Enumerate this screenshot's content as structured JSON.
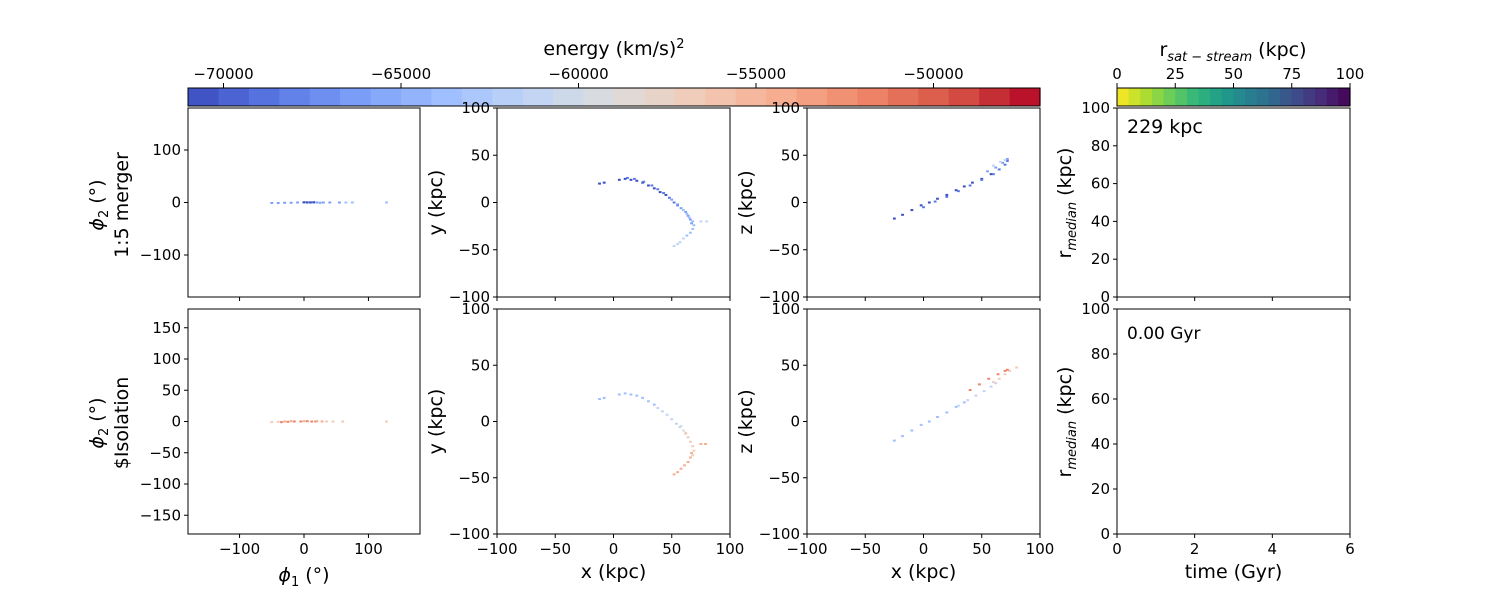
{
  "figure": {
    "colorbar_energy": {
      "label": "energy (km/s)",
      "label_sup": "2",
      "ticks": [
        -70000,
        -65000,
        -60000,
        -55000,
        -50000
      ],
      "tick_labels": [
        "−70000",
        "−65000",
        "−60000",
        "−55000",
        "−50000"
      ],
      "range": [
        -71000,
        -47000
      ],
      "n_segments": 28,
      "colormap": "coolwarm",
      "stops": [
        "#3b4cc0",
        "#5977e3",
        "#7b9ff9",
        "#9ebeff",
        "#c0d4f5",
        "#dddcdc",
        "#f2cbb7",
        "#f7ac8e",
        "#ee8468",
        "#d65244",
        "#b40426"
      ]
    },
    "colorbar_rsat": {
      "label_main": "r",
      "label_sub": "sat − stream",
      "label_tail": " (kpc)",
      "ticks": [
        0,
        25,
        50,
        75,
        100
      ],
      "tick_labels": [
        "0",
        "25",
        "50",
        "75",
        "100"
      ],
      "range": [
        0,
        100
      ],
      "n_segments": 20,
      "colormap": "viridis_r",
      "stops": [
        "#fde725",
        "#b5de2b",
        "#6ece58",
        "#35b779",
        "#1f9e89",
        "#26828e",
        "#31688e",
        "#3e4989",
        "#482878",
        "#440154"
      ]
    },
    "row_labels": [
      "1:5 merger",
      "$Isolation"
    ],
    "annotations": {
      "distance": "229 kpc",
      "time": "0.00 Gyr"
    }
  },
  "chart_data": [
    {
      "type": "scatter",
      "panel": "top-phi",
      "row": "1:5 merger",
      "xlim": [
        -180,
        180
      ],
      "ylim": [
        -180,
        180
      ],
      "ylabel": "ϕ₂ (°)",
      "xlabel": "",
      "yticks": [
        -100,
        0,
        100
      ],
      "xticks": [
        -100,
        0,
        100
      ],
      "series": [
        {
          "color": "#7b9ff9",
          "points": [
            [
              -50,
              -1
            ],
            [
              -40,
              -1
            ],
            [
              -30,
              -0.5
            ],
            [
              -20,
              -0.5
            ],
            [
              -10,
              0
            ],
            [
              0,
              0
            ],
            [
              5,
              0.5
            ],
            [
              10,
              0.5
            ],
            [
              15,
              0
            ],
            [
              20,
              0
            ],
            [
              25,
              -0.5
            ],
            [
              30,
              0
            ],
            [
              40,
              0
            ],
            [
              55,
              0
            ]
          ]
        },
        {
          "color": "#3b4cc0",
          "points": [
            [
              0,
              0.5
            ],
            [
              5,
              0
            ],
            [
              10,
              0
            ],
            [
              15,
              0.5
            ]
          ]
        },
        {
          "color": "#9ebeff",
          "points": [
            [
              65,
              0
            ],
            [
              75,
              0
            ],
            [
              128,
              0
            ]
          ]
        }
      ]
    },
    {
      "type": "scatter",
      "panel": "top-xy",
      "row": "1:5 merger",
      "xlim": [
        -100,
        100
      ],
      "ylim": [
        -100,
        100
      ],
      "xlabel": "",
      "ylabel": "y (kpc)",
      "xticks": [
        -100,
        -50,
        0,
        50,
        100
      ],
      "yticks": [
        -100,
        -50,
        0,
        50,
        100
      ],
      "series": [
        {
          "color": "#3b4cc0",
          "points": [
            [
              -12,
              20
            ],
            [
              -8,
              21
            ],
            [
              5,
              24
            ],
            [
              10,
              25
            ],
            [
              15,
              24
            ],
            [
              20,
              23
            ],
            [
              25,
              21
            ],
            [
              30,
              18
            ],
            [
              35,
              15
            ],
            [
              40,
              11
            ],
            [
              45,
              8
            ]
          ]
        },
        {
          "color": "#5977e3",
          "points": [
            [
              12,
              26
            ],
            [
              18,
              25
            ],
            [
              26,
              22
            ],
            [
              33,
              18
            ],
            [
              38,
              14
            ],
            [
              43,
              10
            ],
            [
              48,
              5
            ],
            [
              52,
              0
            ],
            [
              55,
              -3
            ]
          ]
        },
        {
          "color": "#7b9ff9",
          "points": [
            [
              50,
              3
            ],
            [
              55,
              -2
            ],
            [
              58,
              -6
            ],
            [
              62,
              -10
            ],
            [
              64,
              -14
            ],
            [
              66,
              -18
            ],
            [
              67,
              -22
            ]
          ]
        },
        {
          "color": "#9ebeff",
          "points": [
            [
              60,
              -8
            ],
            [
              63,
              -12
            ],
            [
              65,
              -16
            ],
            [
              68,
              -20
            ],
            [
              69,
              -24
            ],
            [
              68,
              -28
            ],
            [
              66,
              -32
            ],
            [
              63,
              -35
            ]
          ]
        },
        {
          "color": "#c0d4f5",
          "points": [
            [
              60,
              -38
            ],
            [
              57,
              -42
            ],
            [
              55,
              -44
            ],
            [
              52,
              -46
            ],
            [
              75,
              -20
            ],
            [
              80,
              -20
            ]
          ]
        }
      ]
    },
    {
      "type": "scatter",
      "panel": "top-xz",
      "row": "1:5 merger",
      "xlim": [
        -100,
        100
      ],
      "ylim": [
        -100,
        100
      ],
      "xlabel": "",
      "ylabel": "z (kpc)",
      "xticks": [
        -100,
        -50,
        0,
        50,
        100
      ],
      "yticks": [
        -100,
        -50,
        0,
        50,
        100
      ],
      "series": [
        {
          "color": "#3b4cc0",
          "points": [
            [
              -25,
              -17
            ],
            [
              -18,
              -13
            ],
            [
              -10,
              -8
            ],
            [
              -2,
              -3
            ],
            [
              5,
              0
            ],
            [
              12,
              4
            ],
            [
              20,
              8
            ],
            [
              28,
              13
            ],
            [
              35,
              17
            ],
            [
              42,
              21
            ],
            [
              50,
              25
            ],
            [
              58,
              30
            ]
          ]
        },
        {
          "color": "#5977e3",
          "points": [
            [
              0,
              -5
            ],
            [
              10,
              1
            ],
            [
              20,
              6
            ],
            [
              30,
              12
            ],
            [
              40,
              18
            ],
            [
              50,
              24
            ],
            [
              60,
              30
            ],
            [
              65,
              35
            ],
            [
              70,
              40
            ],
            [
              72,
              44
            ]
          ]
        },
        {
          "color": "#7b9ff9",
          "points": [
            [
              55,
              33
            ],
            [
              62,
              37
            ],
            [
              68,
              42
            ],
            [
              72,
              46
            ]
          ]
        },
        {
          "color": "#c0d4f5",
          "points": [
            [
              60,
              39
            ],
            [
              66,
              43
            ],
            [
              70,
              45
            ]
          ]
        }
      ]
    },
    {
      "type": "line",
      "panel": "top-rmedian",
      "row": "1:5 merger",
      "xlim": [
        0,
        6
      ],
      "ylim": [
        0,
        100
      ],
      "xlabel": "",
      "ylabel": "r_median (kpc)",
      "xticks": [
        0,
        2,
        4,
        6
      ],
      "yticks": [
        0,
        20,
        40,
        60,
        80,
        100
      ],
      "series": []
    },
    {
      "type": "scatter",
      "panel": "bottom-phi",
      "row": "$Isolation",
      "xlim": [
        -180,
        180
      ],
      "ylim": [
        -180,
        180
      ],
      "xlabel": "ϕ₁ (°)",
      "ylabel": "ϕ₂ (°)",
      "xticks": [
        -100,
        0,
        100
      ],
      "yticks": [
        -150,
        -100,
        -50,
        0,
        50,
        100,
        150
      ],
      "series": [
        {
          "color": "#f2cbb7",
          "points": [
            [
              -50,
              -1
            ],
            [
              -40,
              -0.5
            ],
            [
              35,
              0
            ],
            [
              45,
              0
            ],
            [
              60,
              0
            ],
            [
              128,
              0
            ]
          ]
        },
        {
          "color": "#ee8468",
          "points": [
            [
              -35,
              -1
            ],
            [
              -25,
              -0.5
            ],
            [
              -15,
              0
            ],
            [
              -5,
              0
            ],
            [
              5,
              0.5
            ],
            [
              12,
              0
            ],
            [
              18,
              0
            ]
          ]
        },
        {
          "color": "#f7ac8e",
          "points": [
            [
              -30,
              0
            ],
            [
              -20,
              0.5
            ],
            [
              0,
              0.5
            ],
            [
              20,
              0.5
            ],
            [
              28,
              0
            ]
          ]
        }
      ]
    },
    {
      "type": "scatter",
      "panel": "bottom-xy",
      "row": "$Isolation",
      "xlim": [
        -100,
        100
      ],
      "ylim": [
        -100,
        100
      ],
      "xlabel": "x (kpc)",
      "ylabel": "y (kpc)",
      "xticks": [
        -100,
        -50,
        0,
        50,
        100
      ],
      "yticks": [
        -100,
        -50,
        0,
        50,
        100
      ],
      "series": [
        {
          "color": "#9ebeff",
          "points": [
            [
              -12,
              20
            ],
            [
              -8,
              21
            ],
            [
              5,
              24
            ],
            [
              10,
              25
            ],
            [
              15,
              24
            ],
            [
              20,
              23
            ],
            [
              25,
              21
            ],
            [
              30,
              18
            ],
            [
              35,
              15
            ]
          ]
        },
        {
          "color": "#c0d4f5",
          "points": [
            [
              38,
              12
            ],
            [
              42,
              9
            ],
            [
              46,
              6
            ],
            [
              50,
              2
            ],
            [
              54,
              -2
            ],
            [
              57,
              -5
            ]
          ]
        },
        {
          "color": "#dddcdc",
          "points": [
            [
              58,
              -4
            ],
            [
              60,
              -8
            ],
            [
              62,
              -11
            ]
          ]
        },
        {
          "color": "#f2cbb7",
          "points": [
            [
              62,
              -10
            ],
            [
              64,
              -14
            ],
            [
              66,
              -18
            ],
            [
              68,
              -22
            ],
            [
              69,
              -26
            ],
            [
              68,
              -30
            ]
          ]
        },
        {
          "color": "#f7ac8e",
          "points": [
            [
              67,
              -28
            ],
            [
              66,
              -32
            ],
            [
              64,
              -36
            ],
            [
              61,
              -39
            ],
            [
              58,
              -42
            ],
            [
              55,
              -45
            ],
            [
              52,
              -47
            ],
            [
              75,
              -20
            ],
            [
              79,
              -20
            ]
          ]
        }
      ]
    },
    {
      "type": "scatter",
      "panel": "bottom-xz",
      "row": "$Isolation",
      "xlim": [
        -100,
        100
      ],
      "ylim": [
        -100,
        100
      ],
      "xlabel": "x (kpc)",
      "ylabel": "z (kpc)",
      "xticks": [
        -100,
        -50,
        0,
        50,
        100
      ],
      "yticks": [
        -100,
        -50,
        0,
        50,
        100
      ],
      "series": [
        {
          "color": "#9ebeff",
          "points": [
            [
              -25,
              -17
            ],
            [
              -18,
              -13
            ],
            [
              -10,
              -8
            ],
            [
              -2,
              -3
            ],
            [
              5,
              0
            ],
            [
              12,
              4
            ],
            [
              20,
              8
            ],
            [
              28,
              13
            ],
            [
              35,
              17
            ]
          ]
        },
        {
          "color": "#c0d4f5",
          "points": [
            [
              30,
              14
            ],
            [
              38,
              19
            ],
            [
              45,
              23
            ],
            [
              52,
              27
            ],
            [
              58,
              31
            ],
            [
              62,
              34
            ]
          ]
        },
        {
          "color": "#f2cbb7",
          "points": [
            [
              60,
              35
            ],
            [
              65,
              38
            ],
            [
              70,
              42
            ],
            [
              74,
              45
            ],
            [
              80,
              48
            ]
          ]
        },
        {
          "color": "#ee8468",
          "points": [
            [
              40,
              28
            ],
            [
              48,
              33
            ],
            [
              56,
              38
            ],
            [
              64,
              42
            ],
            [
              70,
              45
            ],
            [
              72,
              46
            ]
          ]
        }
      ]
    },
    {
      "type": "line",
      "panel": "bottom-rmedian",
      "row": "$Isolation",
      "xlim": [
        0,
        6
      ],
      "ylim": [
        0,
        100
      ],
      "xlabel": "time (Gyr)",
      "ylabel": "r_median (kpc)",
      "xticks": [
        0,
        2,
        4,
        6
      ],
      "yticks": [
        0,
        20,
        40,
        60,
        80,
        100
      ],
      "series": []
    }
  ]
}
